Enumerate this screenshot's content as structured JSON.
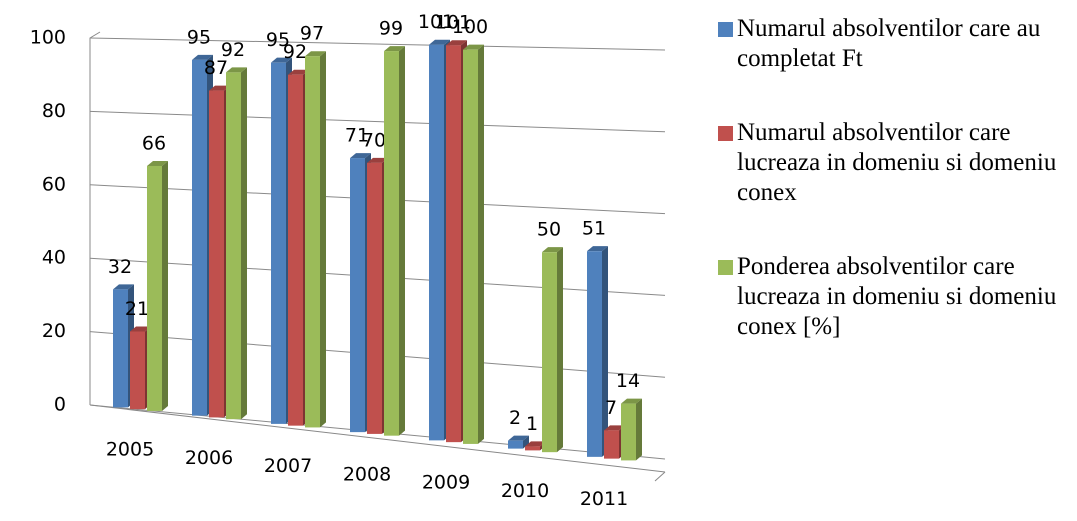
{
  "chart_data": {
    "type": "bar3d",
    "categories": [
      "2005",
      "2006",
      "2007",
      "2008",
      "2009",
      "2010",
      "2011"
    ],
    "series": [
      {
        "name": "Numarul absolventilor care au completat Ft",
        "color": "#4f81bd",
        "values": [
          32,
          95,
          95,
          71,
          101,
          2,
          51
        ]
      },
      {
        "name": "Numarul absolventilor care lucreaza in domeniu si domeniu conex",
        "color": "#c0504d",
        "values": [
          21,
          87,
          92,
          70,
          101,
          1,
          7
        ]
      },
      {
        "name": "Ponderea absolventilor care lucreaza in domeniu si domeniu conex [%]",
        "color": "#9bbb59",
        "values": [
          66,
          92,
          97,
          99,
          100,
          50,
          14
        ]
      }
    ],
    "ylim": [
      0,
      100
    ],
    "yticks": [
      0,
      20,
      40,
      60,
      80,
      100
    ],
    "grid": true,
    "legend": "right"
  }
}
